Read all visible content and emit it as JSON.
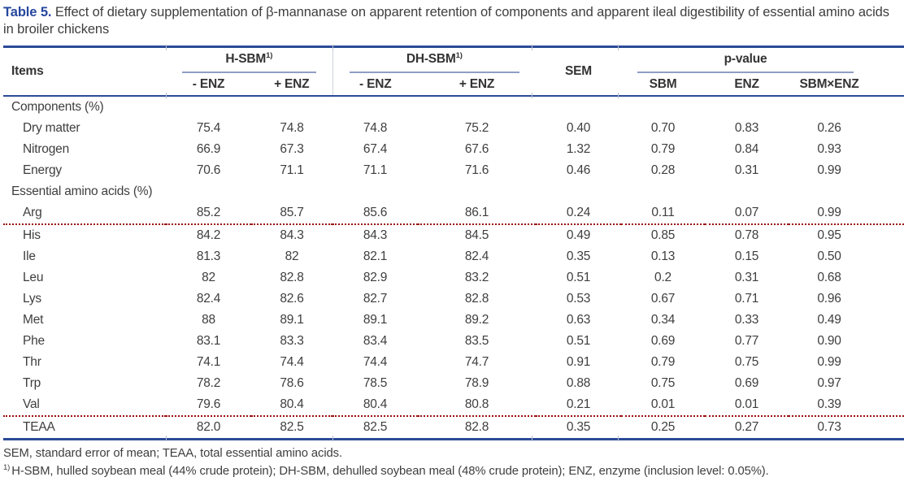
{
  "colors": {
    "rule_blue": "#2c4a97",
    "caption_blue": "#26479e",
    "spanner_gray_blue": "#8f9ec4",
    "red_dotted_underline": "#9b0f0f",
    "text_gray": "#3e3e3e"
  },
  "title": {
    "label": "Table 5.",
    "text": "Effect of dietary supplementation of β-mannanase on apparent retention of components and apparent ileal digestibility of essential amino acids in broiler chickens"
  },
  "table": {
    "header": {
      "items": "Items",
      "group1": {
        "label": "H-SBM",
        "sup": "1)",
        "sub": [
          "- ENZ",
          "+ ENZ"
        ]
      },
      "group2": {
        "label": "DH-SBM",
        "sup": "1)",
        "sub": [
          "- ENZ",
          "+ ENZ"
        ]
      },
      "sem": "SEM",
      "group3": {
        "label": "p-value",
        "sub": [
          "SBM",
          "ENZ",
          "SBM×ENZ"
        ]
      }
    },
    "rows": [
      {
        "label": "Components (%)",
        "type": "section",
        "values": [],
        "underline": false
      },
      {
        "label": "Dry matter",
        "type": "data",
        "values": [
          "75.4",
          "74.8",
          "74.8",
          "75.2",
          "0.40",
          "0.70",
          "0.83",
          "0.26"
        ],
        "underline": false
      },
      {
        "label": "Nitrogen",
        "type": "data",
        "values": [
          "66.9",
          "67.3",
          "67.4",
          "67.6",
          "1.32",
          "0.79",
          "0.84",
          "0.93"
        ],
        "underline": false
      },
      {
        "label": "Energy",
        "type": "data",
        "values": [
          "70.6",
          "71.1",
          "71.1",
          "71.6",
          "0.46",
          "0.28",
          "0.31",
          "0.99"
        ],
        "underline": false
      },
      {
        "label": "Essential amino acids (%)",
        "type": "section",
        "values": [],
        "underline": false
      },
      {
        "label": "Arg",
        "type": "data",
        "values": [
          "85.2",
          "85.7",
          "85.6",
          "86.1",
          "0.24",
          "0.11",
          "0.07",
          "0.99"
        ],
        "underline": true
      },
      {
        "label": "His",
        "type": "data",
        "values": [
          "84.2",
          "84.3",
          "84.3",
          "84.5",
          "0.49",
          "0.85",
          "0.78",
          "0.95"
        ],
        "underline": false
      },
      {
        "label": "Ile",
        "type": "data",
        "values": [
          "81.3",
          "82",
          "82.1",
          "82.4",
          "0.35",
          "0.13",
          "0.15",
          "0.50"
        ],
        "underline": false
      },
      {
        "label": "Leu",
        "type": "data",
        "values": [
          "82",
          "82.8",
          "82.9",
          "83.2",
          "0.51",
          "0.2",
          "0.31",
          "0.68"
        ],
        "underline": false
      },
      {
        "label": "Lys",
        "type": "data",
        "values": [
          "82.4",
          "82.6",
          "82.7",
          "82.8",
          "0.53",
          "0.67",
          "0.71",
          "0.96"
        ],
        "underline": false
      },
      {
        "label": "Met",
        "type": "data",
        "values": [
          "88",
          "89.1",
          "89.1",
          "89.2",
          "0.63",
          "0.34",
          "0.33",
          "0.49"
        ],
        "underline": false
      },
      {
        "label": "Phe",
        "type": "data",
        "values": [
          "83.1",
          "83.3",
          "83.4",
          "83.5",
          "0.51",
          "0.69",
          "0.77",
          "0.90"
        ],
        "underline": false
      },
      {
        "label": "Thr",
        "type": "data",
        "values": [
          "74.1",
          "74.4",
          "74.4",
          "74.7",
          "0.91",
          "0.79",
          "0.75",
          "0.99"
        ],
        "underline": false
      },
      {
        "label": "Trp",
        "type": "data",
        "values": [
          "78.2",
          "78.6",
          "78.5",
          "78.9",
          "0.88",
          "0.75",
          "0.69",
          "0.97"
        ],
        "underline": false
      },
      {
        "label": "Val",
        "type": "data",
        "values": [
          "79.6",
          "80.4",
          "80.4",
          "80.8",
          "0.21",
          "0.01",
          "0.01",
          "0.39"
        ],
        "underline": true
      },
      {
        "label": "TEAA",
        "type": "data",
        "values": [
          "82.0",
          "82.5",
          "82.5",
          "82.8",
          "0.35",
          "0.25",
          "0.27",
          "0.73"
        ],
        "underline": false
      }
    ]
  },
  "footnotes": {
    "abbreviations": "SEM, standard error of mean; TEAA, total essential amino acids.",
    "definitions": {
      "sup": "1)",
      "text": "H-SBM, hulled soybean meal (44% crude protein); DH-SBM, dehulled soybean meal (48% crude protein); ENZ, enzyme (inclusion level: 0.05%)."
    }
  }
}
